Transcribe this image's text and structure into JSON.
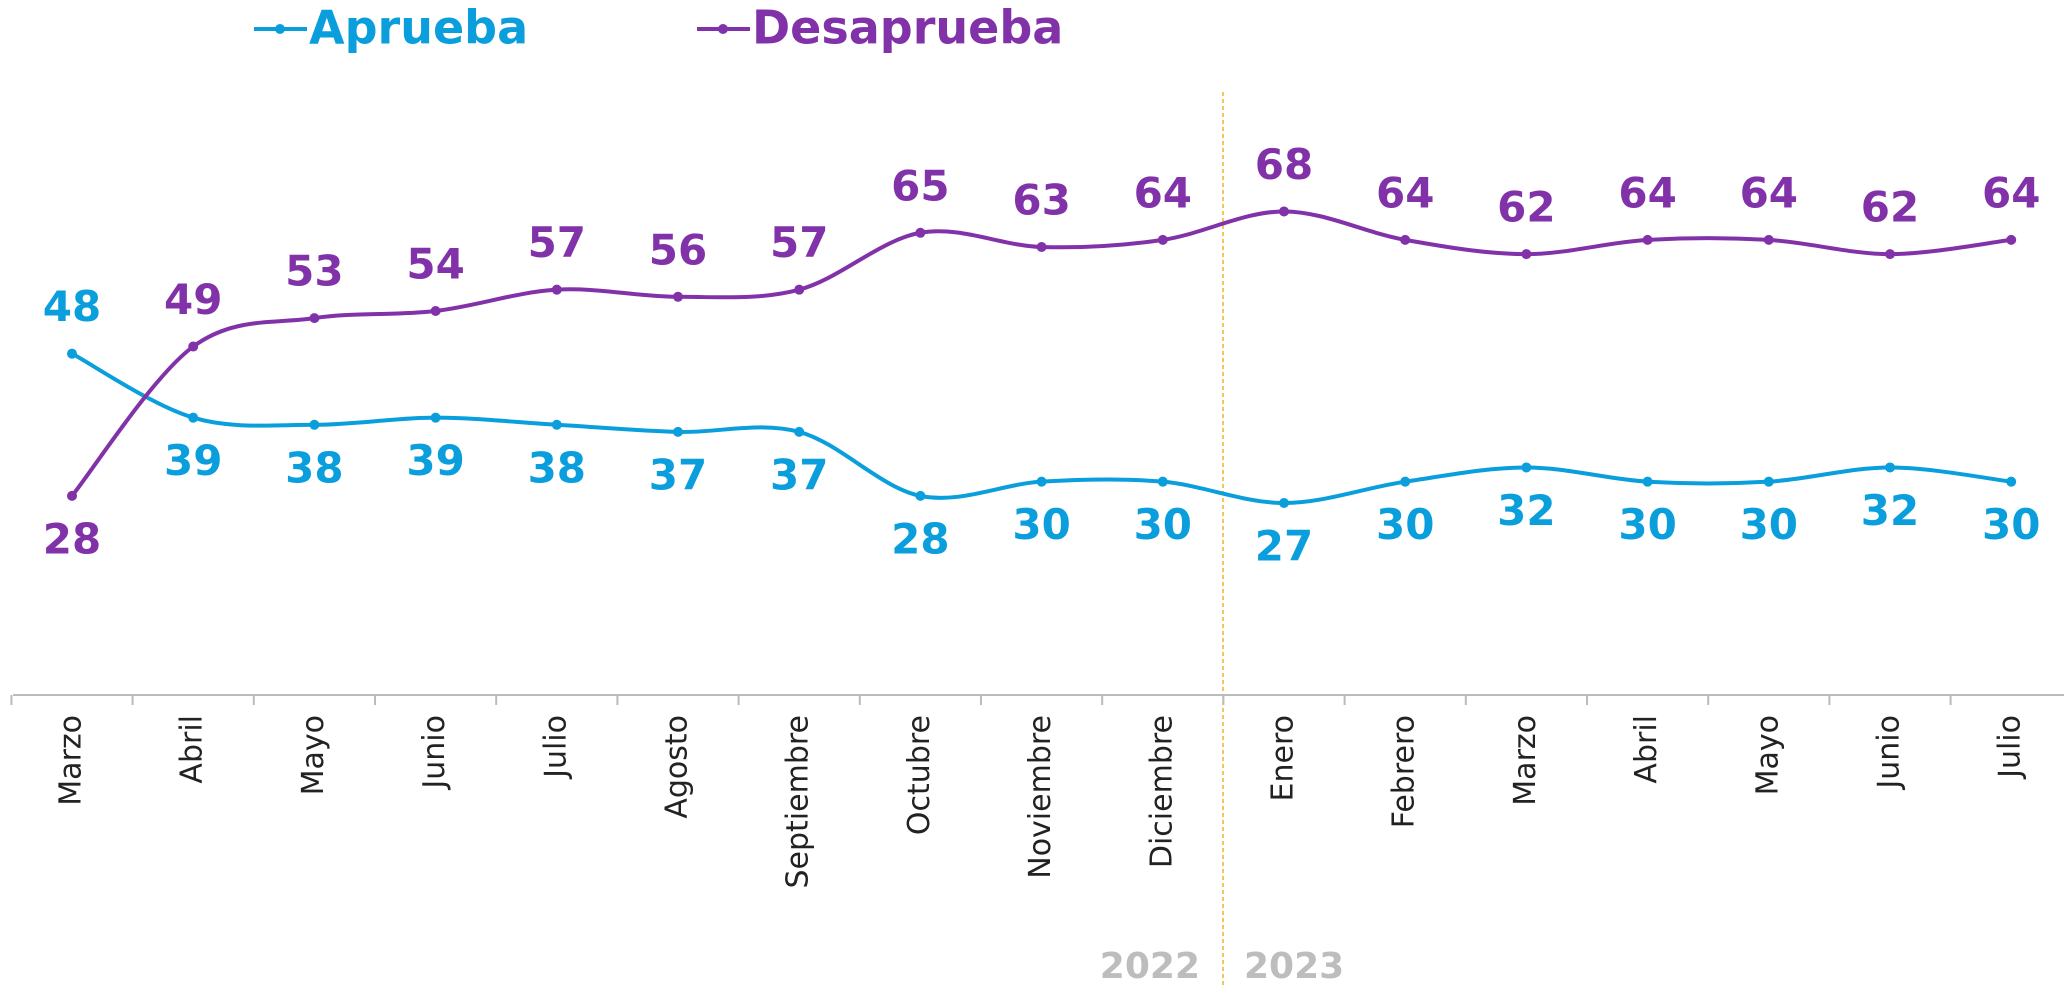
{
  "chart_data": {
    "type": "line",
    "categories": [
      "Marzo",
      "Abril",
      "Mayo",
      "Junio",
      "Julio",
      "Agosto",
      "Septiembre",
      "Octubre",
      "Noviembre",
      "Diciembre",
      "Enero",
      "Febrero",
      "Marzo",
      "Abril",
      "Mayo",
      "Junio",
      "Julio"
    ],
    "series": [
      {
        "name": "Aprueba",
        "color": "#0a9fdc",
        "values": [
          48,
          39,
          38,
          39,
          38,
          37,
          37,
          28,
          30,
          30,
          27,
          30,
          32,
          30,
          30,
          32,
          30
        ]
      },
      {
        "name": "Desaprueba",
        "color": "#8232a8",
        "values": [
          28,
          49,
          53,
          54,
          57,
          56,
          57,
          65,
          63,
          64,
          68,
          64,
          62,
          64,
          64,
          62,
          64
        ]
      }
    ],
    "year_labels": [
      "2022",
      "2023"
    ],
    "ylim": [
      0,
      90
    ],
    "smooth": true
  }
}
